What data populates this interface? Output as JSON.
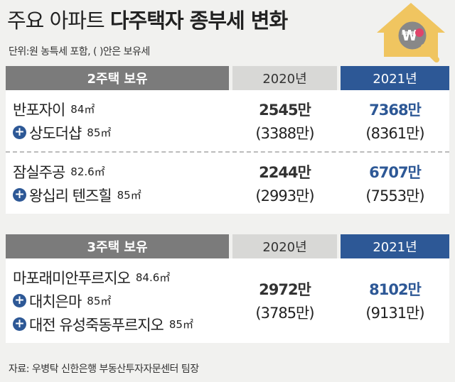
{
  "header": {
    "title_light": "주요 아파트",
    "title_bold": "다주택자 종부세 변화",
    "note": "단위:원  농특세 포함, ( )안은 보유세"
  },
  "sections": [
    {
      "label": "2주택 보유",
      "col_2020": "2020년",
      "col_2021": "2021년",
      "rows": [
        {
          "items": [
            {
              "name": "반포자이",
              "size": "84㎡"
            },
            {
              "name": "상도더샵",
              "size": "85㎡"
            }
          ],
          "tax_2020": "2545만",
          "hold_2020": "(3388만)",
          "tax_2021": "7368만",
          "hold_2021": "(8361만)"
        },
        {
          "items": [
            {
              "name": "잠실주공",
              "size": "82.6㎡"
            },
            {
              "name": "왕십리 텐즈힐",
              "size": "85㎡"
            }
          ],
          "tax_2020": "2244만",
          "hold_2020": "(2993만)",
          "tax_2021": "6707만",
          "hold_2021": "(7553만)"
        }
      ]
    },
    {
      "label": "3주택 보유",
      "col_2020": "2020년",
      "col_2021": "2021년",
      "rows": [
        {
          "items": [
            {
              "name": "마포래미안푸르지오",
              "size": "84.6㎡"
            },
            {
              "name": "대치은마",
              "size": "85㎡"
            },
            {
              "name": "대전 유성죽동푸르지오",
              "size": "85㎡"
            }
          ],
          "tax_2020": "2972만",
          "hold_2020": "(3785만)",
          "tax_2021": "8102만",
          "hold_2021": "(9131만)"
        }
      ]
    }
  ],
  "source": "자료: 우병탁 신한은행 부동산투자자문센터 팀장"
}
